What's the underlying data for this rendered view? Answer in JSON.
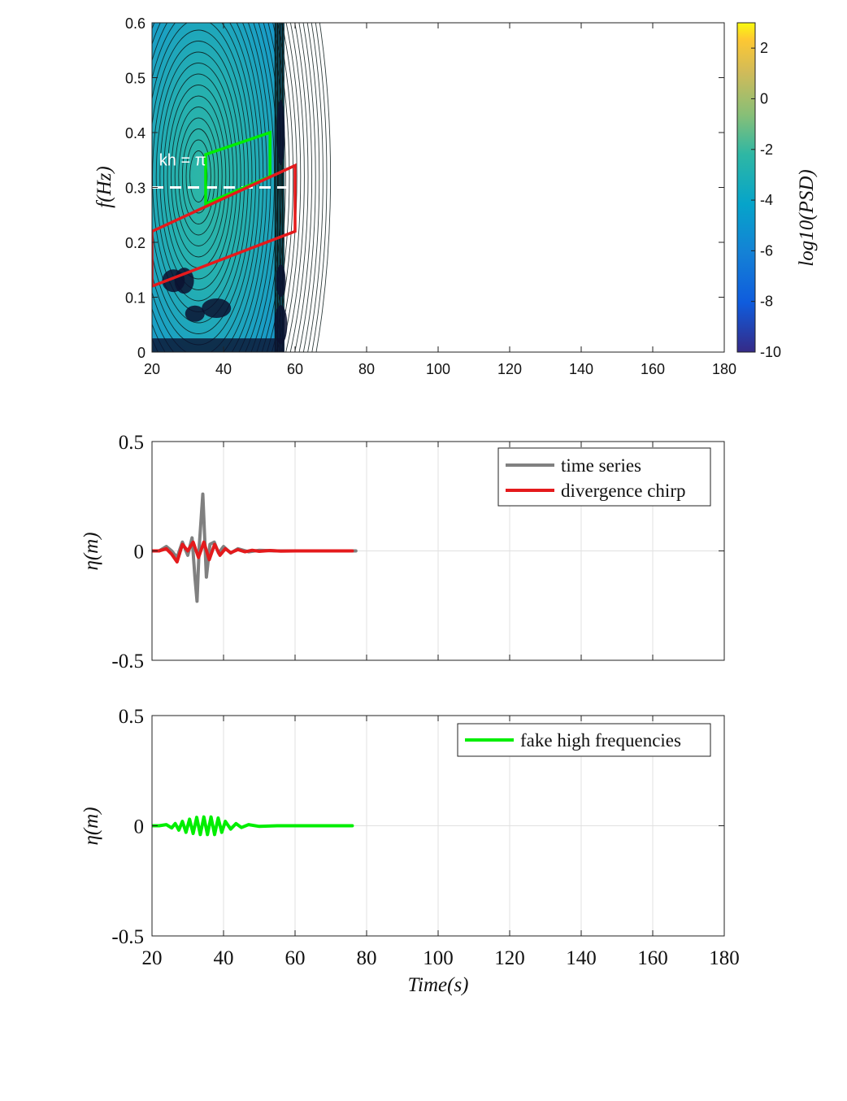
{
  "chart_data": [
    {
      "type": "heatmap",
      "title": "",
      "xlabel": "",
      "ylabel": "f(Hz)",
      "xlim": [
        20,
        180
      ],
      "ylim": [
        0,
        0.6
      ],
      "x_ticks": [
        "20",
        "40",
        "60",
        "80",
        "100",
        "120",
        "140",
        "160",
        "180"
      ],
      "y_ticks": [
        "0",
        "0.1",
        "0.2",
        "0.3",
        "0.4",
        "0.5",
        "0.6"
      ],
      "colorbar": {
        "label": "log10(PSD)",
        "range": [
          -10,
          3
        ],
        "ticks": [
          "-10",
          "-8",
          "-6",
          "-4",
          "-2",
          "0",
          "2"
        ],
        "colormap": "parula"
      },
      "data_extent_x": [
        20,
        57
      ],
      "peak": {
        "x": 33,
        "y": 0.32,
        "value": -1.5
      },
      "contour_lines": true,
      "annotation": {
        "text": "kh = π",
        "x": 22,
        "y": 0.34
      },
      "reference_line": {
        "y": 0.3,
        "style": "dashed",
        "color": "#ffffff"
      },
      "regions": [
        {
          "color": "#00ee00",
          "polygon": [
            [
              35,
              0.27
            ],
            [
              53,
              0.32
            ],
            [
              53,
              0.4
            ],
            [
              35,
              0.36
            ]
          ]
        },
        {
          "color": "#e41a1c",
          "polygon": [
            [
              20,
              0.12
            ],
            [
              60,
              0.22
            ],
            [
              60,
              0.34
            ],
            [
              20,
              0.22
            ]
          ]
        }
      ],
      "grid": false
    },
    {
      "type": "line",
      "title": "",
      "xlabel": "",
      "ylabel": "η(m)",
      "xlim": [
        20,
        180
      ],
      "ylim": [
        -0.5,
        0.5
      ],
      "y_ticks": [
        "-0.5",
        "0",
        "0.5"
      ],
      "grid": true,
      "legend": "top-right",
      "series": [
        {
          "name": "time series",
          "color": "#808080",
          "x": [
            20,
            22,
            24,
            25.5,
            27,
            28.5,
            30,
            31.2,
            32,
            32.6,
            33.2,
            34.2,
            35.2,
            36.2,
            37.4,
            38.6,
            40,
            42,
            44,
            47,
            50,
            55,
            60,
            70,
            77
          ],
          "y": [
            0,
            0.0,
            0.02,
            0.0,
            -0.03,
            0.04,
            -0.02,
            0.06,
            -0.12,
            -0.23,
            0.02,
            0.26,
            -0.12,
            0.03,
            0.04,
            -0.01,
            0.02,
            -0.01,
            0.01,
            -0.004,
            0.003,
            0.0,
            0.0,
            0.0,
            0.0
          ]
        },
        {
          "name": "divergence chirp",
          "color": "#e41a1c",
          "x": [
            20,
            22,
            24,
            25.5,
            27,
            28.5,
            30,
            31.5,
            33,
            34.5,
            36,
            37.5,
            39,
            40.5,
            42,
            44,
            46,
            48,
            50,
            53,
            56,
            60,
            65,
            70,
            76
          ],
          "y": [
            0,
            0.0,
            0.01,
            -0.015,
            -0.05,
            0.03,
            0.0,
            0.04,
            -0.03,
            0.04,
            -0.04,
            0.03,
            -0.02,
            0.01,
            -0.008,
            0.006,
            -0.004,
            0.003,
            -0.002,
            0.002,
            -0.001,
            0.0,
            0.0,
            0.0,
            0.0
          ]
        }
      ]
    },
    {
      "type": "line",
      "title": "",
      "xlabel": "Time(s)",
      "ylabel": "η(m)",
      "xlim": [
        20,
        180
      ],
      "ylim": [
        -0.5,
        0.5
      ],
      "x_ticks": [
        "20",
        "40",
        "60",
        "80",
        "100",
        "120",
        "140",
        "160",
        "180"
      ],
      "y_ticks": [
        "-0.5",
        "0",
        "0.5"
      ],
      "grid": true,
      "legend": "top-right",
      "series": [
        {
          "name": "fake high frequencies",
          "color": "#00ee00",
          "x": [
            20,
            22,
            24,
            25.5,
            26.5,
            27.5,
            28.5,
            29.5,
            30.5,
            31.5,
            32.5,
            33.5,
            34.5,
            35.5,
            36.5,
            37.5,
            38.5,
            39.5,
            40.5,
            42,
            43.5,
            45,
            47,
            50,
            55,
            60,
            70,
            76
          ],
          "y": [
            0,
            0.0,
            0.005,
            -0.01,
            0.01,
            -0.02,
            0.02,
            -0.03,
            0.03,
            -0.035,
            0.038,
            -0.04,
            0.04,
            -0.04,
            0.04,
            -0.04,
            0.035,
            -0.03,
            0.02,
            -0.015,
            0.01,
            -0.008,
            0.005,
            -0.003,
            0.0,
            0.0,
            0.0,
            0.0
          ]
        }
      ]
    }
  ]
}
